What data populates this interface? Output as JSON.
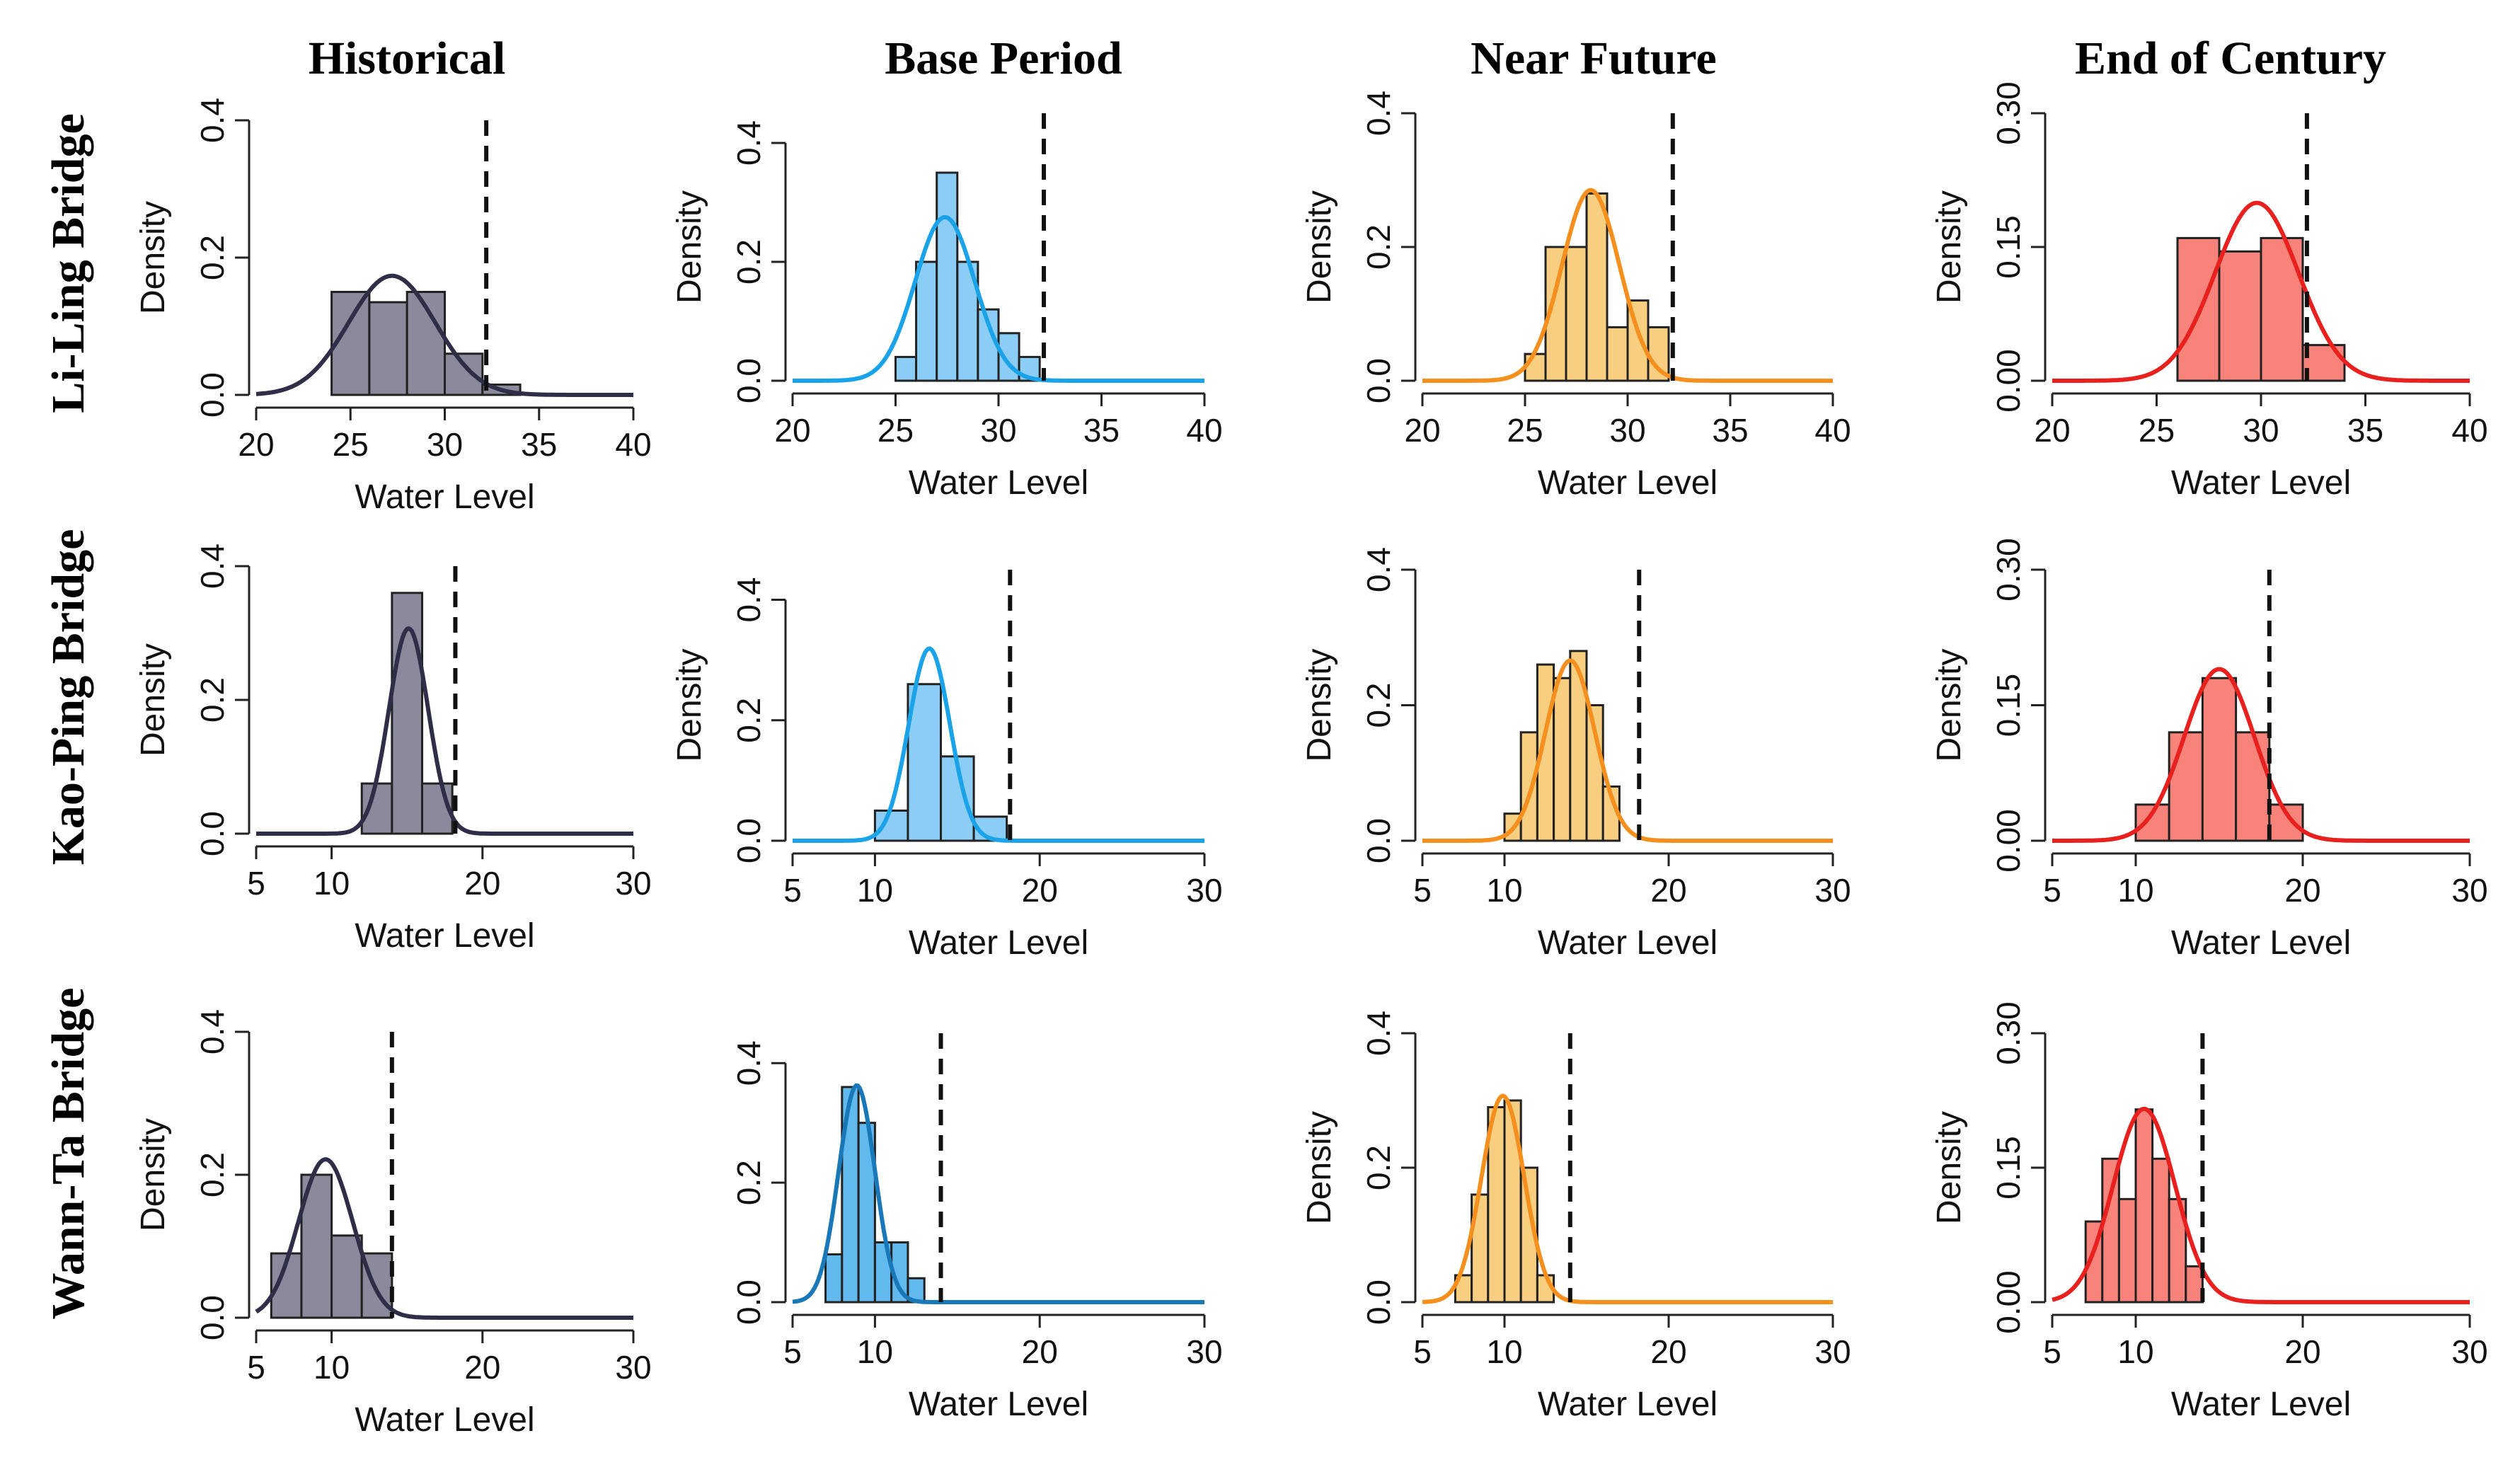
{
  "figure": {
    "columns": [
      "Historical",
      "Base Period",
      "Near Future",
      "End of Century"
    ],
    "rows": [
      "Li-Ling Bridge",
      "Kao-Ping Bridge",
      "Wann-Ta Bridge"
    ]
  },
  "chart_data": [
    {
      "type": "bar",
      "panel": "Li-Ling Bridge / Historical",
      "xlabel": "Water Level",
      "ylabel": "Density",
      "xlim": [
        20,
        40
      ],
      "ylim": [
        0,
        0.4
      ],
      "xticks": [
        20,
        25,
        30,
        35,
        40
      ],
      "yticks": [
        0.0,
        0.2,
        0.4
      ],
      "color": "#8a8a9c",
      "line_color": "#2e2e48",
      "bins": [
        {
          "x0": 24,
          "x1": 26,
          "density": 0.15
        },
        {
          "x0": 26,
          "x1": 28,
          "density": 0.135
        },
        {
          "x0": 28,
          "x1": 30,
          "density": 0.15
        },
        {
          "x0": 30,
          "x1": 32,
          "density": 0.06
        },
        {
          "x0": 32,
          "x1": 34,
          "density": 0.015
        }
      ],
      "curve": {
        "mean": 27.2,
        "sd": 2.3
      },
      "threshold": 32.2
    },
    {
      "type": "bar",
      "panel": "Li-Ling Bridge / Base Period",
      "xlabel": "Water Level",
      "ylabel": "Density",
      "xlim": [
        20,
        40
      ],
      "ylim": [
        0,
        0.45
      ],
      "xticks": [
        20,
        25,
        30,
        35,
        40
      ],
      "yticks": [
        0.0,
        0.2,
        0.4
      ],
      "color": "#8ccdf5",
      "line_color": "#1aa3e8",
      "bins": [
        {
          "x0": 25,
          "x1": 26,
          "density": 0.04
        },
        {
          "x0": 26,
          "x1": 27,
          "density": 0.2
        },
        {
          "x0": 27,
          "x1": 28,
          "density": 0.35
        },
        {
          "x0": 28,
          "x1": 29,
          "density": 0.2
        },
        {
          "x0": 29,
          "x1": 30,
          "density": 0.12
        },
        {
          "x0": 30,
          "x1": 31,
          "density": 0.08
        },
        {
          "x0": 31,
          "x1": 32,
          "density": 0.04
        }
      ],
      "curve": {
        "mean": 27.4,
        "sd": 1.45
      },
      "threshold": 32.2
    },
    {
      "type": "bar",
      "panel": "Li-Ling Bridge / Near Future",
      "xlabel": "Water Level",
      "ylabel": "Density",
      "xlim": [
        20,
        40
      ],
      "ylim": [
        0,
        0.4
      ],
      "xticks": [
        20,
        25,
        30,
        35,
        40
      ],
      "yticks": [
        0.0,
        0.2,
        0.4
      ],
      "color": "#f8ce80",
      "line_color": "#f5901e",
      "bins": [
        {
          "x0": 25,
          "x1": 26,
          "density": 0.04
        },
        {
          "x0": 26,
          "x1": 27,
          "density": 0.2
        },
        {
          "x0": 27,
          "x1": 28,
          "density": 0.2
        },
        {
          "x0": 28,
          "x1": 29,
          "density": 0.28
        },
        {
          "x0": 29,
          "x1": 30,
          "density": 0.08
        },
        {
          "x0": 30,
          "x1": 31,
          "density": 0.12
        },
        {
          "x0": 31,
          "x1": 32,
          "density": 0.08
        }
      ],
      "curve": {
        "mean": 28.2,
        "sd": 1.4
      },
      "threshold": 32.2
    },
    {
      "type": "bar",
      "panel": "Li-Ling Bridge / End of Century",
      "xlabel": "Water Level",
      "ylabel": "Density",
      "xlim": [
        20,
        40
      ],
      "ylim": [
        0,
        0.3
      ],
      "xticks": [
        20,
        25,
        30,
        35,
        40
      ],
      "yticks": [
        0.0,
        0.15,
        0.3
      ],
      "ytick_labels": [
        "0.00",
        "0.15",
        "0.30"
      ],
      "color": "#f8837a",
      "line_color": "#e8201e",
      "bins": [
        {
          "x0": 26,
          "x1": 28,
          "density": 0.16
        },
        {
          "x0": 28,
          "x1": 30,
          "density": 0.145
        },
        {
          "x0": 30,
          "x1": 32,
          "density": 0.16
        },
        {
          "x0": 32,
          "x1": 34,
          "density": 0.04
        }
      ],
      "curve": {
        "mean": 29.8,
        "sd": 2.0
      },
      "threshold": 32.2
    },
    {
      "type": "bar",
      "panel": "Kao-Ping Bridge / Historical",
      "xlabel": "Water Level",
      "ylabel": "Density",
      "xlim": [
        5,
        30
      ],
      "ylim": [
        0,
        0.4
      ],
      "xticks": [
        5,
        10,
        20,
        30
      ],
      "yticks": [
        0.0,
        0.2,
        0.4
      ],
      "color": "#8a8a9c",
      "line_color": "#2e2e48",
      "bins": [
        {
          "x0": 12,
          "x1": 14,
          "density": 0.075
        },
        {
          "x0": 14,
          "x1": 16,
          "density": 0.36
        },
        {
          "x0": 16,
          "x1": 18,
          "density": 0.075
        }
      ],
      "curve": {
        "mean": 15.1,
        "sd": 1.3
      },
      "threshold": 18.2
    },
    {
      "type": "bar",
      "panel": "Kao-Ping Bridge / Base Period",
      "xlabel": "Water Level",
      "ylabel": "Density",
      "xlim": [
        5,
        30
      ],
      "ylim": [
        0,
        0.45
      ],
      "xticks": [
        5,
        10,
        20,
        30
      ],
      "yticks": [
        0.0,
        0.2,
        0.4
      ],
      "color": "#8ccdf5",
      "line_color": "#1aa3e8",
      "bins": [
        {
          "x0": 10,
          "x1": 12,
          "density": 0.05
        },
        {
          "x0": 12,
          "x1": 14,
          "density": 0.26
        },
        {
          "x0": 14,
          "x1": 16,
          "density": 0.14
        },
        {
          "x0": 16,
          "x1": 18,
          "density": 0.04
        }
      ],
      "curve": {
        "mean": 13.3,
        "sd": 1.25
      },
      "threshold": 18.2
    },
    {
      "type": "bar",
      "panel": "Kao-Ping Bridge / Near Future",
      "xlabel": "Water Level",
      "ylabel": "Density",
      "xlim": [
        5,
        30
      ],
      "ylim": [
        0,
        0.4
      ],
      "xticks": [
        5,
        10,
        20,
        30
      ],
      "yticks": [
        0.0,
        0.2,
        0.4
      ],
      "color": "#f8ce80",
      "line_color": "#f5901e",
      "bins": [
        {
          "x0": 10,
          "x1": 11,
          "density": 0.04
        },
        {
          "x0": 11,
          "x1": 12,
          "density": 0.16
        },
        {
          "x0": 12,
          "x1": 13,
          "density": 0.26
        },
        {
          "x0": 13,
          "x1": 14,
          "density": 0.24
        },
        {
          "x0": 14,
          "x1": 15,
          "density": 0.28
        },
        {
          "x0": 15,
          "x1": 16,
          "density": 0.2
        },
        {
          "x0": 16,
          "x1": 17,
          "density": 0.08
        }
      ],
      "curve": {
        "mean": 14.0,
        "sd": 1.5
      },
      "threshold": 18.2
    },
    {
      "type": "bar",
      "panel": "Kao-Ping Bridge / End of Century",
      "xlabel": "Water Level",
      "ylabel": "Density",
      "xlim": [
        5,
        30
      ],
      "ylim": [
        0,
        0.3
      ],
      "xticks": [
        5,
        10,
        20,
        30
      ],
      "yticks": [
        0.0,
        0.15,
        0.3
      ],
      "ytick_labels": [
        "0.00",
        "0.15",
        "0.30"
      ],
      "color": "#f8837a",
      "line_color": "#e8201e",
      "bins": [
        {
          "x0": 10,
          "x1": 12,
          "density": 0.04
        },
        {
          "x0": 12,
          "x1": 14,
          "density": 0.12
        },
        {
          "x0": 14,
          "x1": 16,
          "density": 0.18
        },
        {
          "x0": 16,
          "x1": 18,
          "density": 0.12
        },
        {
          "x0": 18,
          "x1": 20,
          "density": 0.04
        }
      ],
      "curve": {
        "mean": 15.0,
        "sd": 2.1
      },
      "threshold": 18.0
    },
    {
      "type": "bar",
      "panel": "Wann-Ta Bridge / Historical",
      "xlabel": "Water Level",
      "ylabel": "Density",
      "xlim": [
        5,
        30
      ],
      "ylim": [
        0,
        0.4
      ],
      "xticks": [
        5,
        10,
        20,
        30
      ],
      "yticks": [
        0.0,
        0.2,
        0.4
      ],
      "color": "#8a8a9c",
      "line_color": "#2e2e48",
      "bins": [
        {
          "x0": 6,
          "x1": 8,
          "density": 0.09
        },
        {
          "x0": 8,
          "x1": 10,
          "density": 0.2
        },
        {
          "x0": 10,
          "x1": 12,
          "density": 0.115
        },
        {
          "x0": 12,
          "x1": 14,
          "density": 0.09
        }
      ],
      "curve": {
        "mean": 9.6,
        "sd": 1.8
      },
      "threshold": 14.0
    },
    {
      "type": "bar",
      "panel": "Wann-Ta Bridge / Base Period",
      "xlabel": "Water Level",
      "ylabel": "",
      "xlim": [
        5,
        30
      ],
      "ylim": [
        0,
        0.45
      ],
      "xticks": [
        5,
        10,
        20,
        30
      ],
      "yticks": [
        0.0,
        0.2,
        0.4
      ],
      "color": "#62b9ee",
      "line_color": "#1878b8",
      "bins": [
        {
          "x0": 7,
          "x1": 8,
          "density": 0.08
        },
        {
          "x0": 8,
          "x1": 9,
          "density": 0.36
        },
        {
          "x0": 9,
          "x1": 10,
          "density": 0.3
        },
        {
          "x0": 10,
          "x1": 11,
          "density": 0.1
        },
        {
          "x0": 11,
          "x1": 12,
          "density": 0.1
        },
        {
          "x0": 12,
          "x1": 13,
          "density": 0.04
        }
      ],
      "curve": {
        "mean": 8.9,
        "sd": 1.1
      },
      "threshold": 14.0
    },
    {
      "type": "bar",
      "panel": "Wann-Ta Bridge / Near Future",
      "xlabel": "Water Level",
      "ylabel": "Density",
      "xlim": [
        5,
        30
      ],
      "ylim": [
        0,
        0.4
      ],
      "xticks": [
        5,
        10,
        20,
        30
      ],
      "yticks": [
        0.0,
        0.2,
        0.4
      ],
      "color": "#f8ce80",
      "line_color": "#f5901e",
      "bins": [
        {
          "x0": 7,
          "x1": 8,
          "density": 0.04
        },
        {
          "x0": 8,
          "x1": 9,
          "density": 0.16
        },
        {
          "x0": 9,
          "x1": 10,
          "density": 0.29
        },
        {
          "x0": 10,
          "x1": 11,
          "density": 0.3
        },
        {
          "x0": 11,
          "x1": 12,
          "density": 0.2
        },
        {
          "x0": 12,
          "x1": 13,
          "density": 0.04
        }
      ],
      "curve": {
        "mean": 9.9,
        "sd": 1.3
      },
      "threshold": 14.0
    },
    {
      "type": "bar",
      "panel": "Wann-Ta Bridge / End of Century",
      "xlabel": "Water Level",
      "ylabel": "Density",
      "xlim": [
        5,
        30
      ],
      "ylim": [
        0,
        0.3
      ],
      "xticks": [
        5,
        10,
        20,
        30
      ],
      "yticks": [
        0.0,
        0.15,
        0.3
      ],
      "ytick_labels": [
        "0.00",
        "0.15",
        "0.30"
      ],
      "color": "#f8837a",
      "line_color": "#e8201e",
      "bins": [
        {
          "x0": 7,
          "x1": 8,
          "density": 0.09
        },
        {
          "x0": 8,
          "x1": 9,
          "density": 0.16
        },
        {
          "x0": 9,
          "x1": 10,
          "density": 0.115
        },
        {
          "x0": 10,
          "x1": 11,
          "density": 0.215
        },
        {
          "x0": 11,
          "x1": 12,
          "density": 0.16
        },
        {
          "x0": 12,
          "x1": 13,
          "density": 0.115
        },
        {
          "x0": 13,
          "x1": 14,
          "density": 0.04
        }
      ],
      "curve": {
        "mean": 10.5,
        "sd": 1.85
      },
      "threshold": 14.0
    }
  ]
}
